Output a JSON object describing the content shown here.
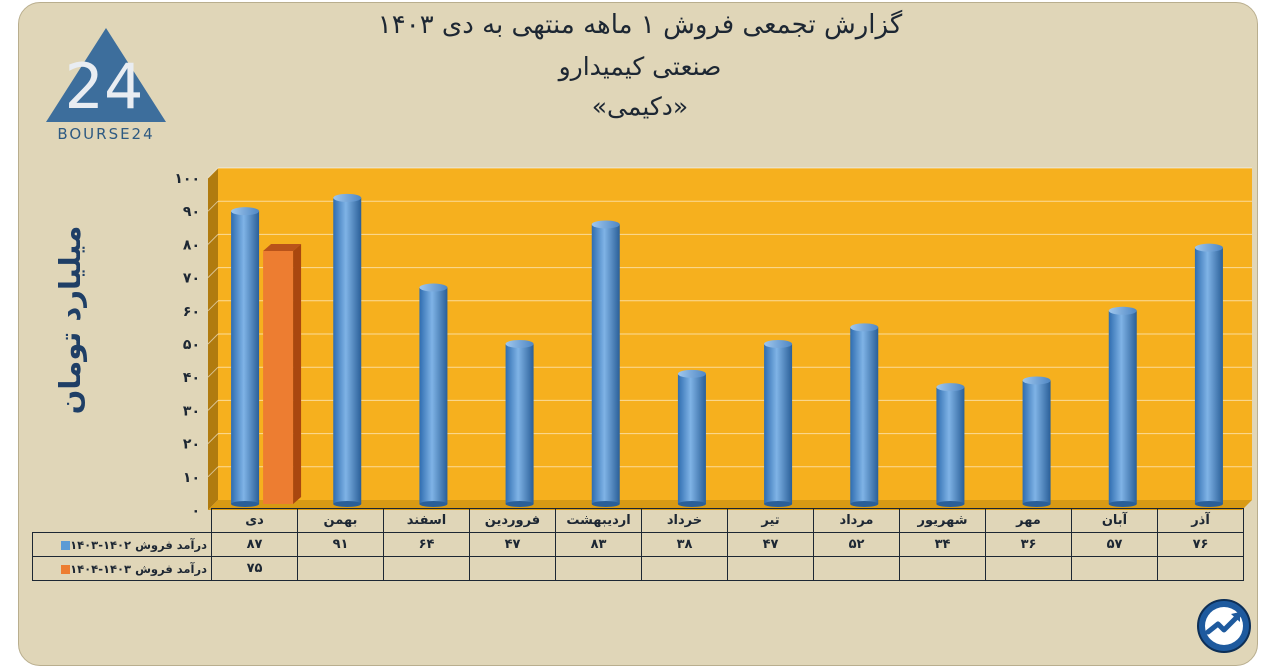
{
  "header": {
    "title_line1": "گزارش تجمعی فروش ۱ ماهه منتهی به دی ۱۴۰۳",
    "title_line2": "صنعتی کیمیدارو",
    "title_line3": "«دکیمی»"
  },
  "brand": {
    "logo_text": "BOURSE24",
    "logo_glyph": "24",
    "trend_icon": "trend-chart-icon"
  },
  "colors": {
    "background": "#e0d6b8",
    "plot": "#f6b01e",
    "series1": "#5b9bd5",
    "series2": "#ed7d31",
    "text": "#1d2733"
  },
  "chart_data": {
    "type": "bar",
    "ylabel": "میلیارد تومان",
    "ylim": [
      0,
      100
    ],
    "yticks": [
      "۰",
      "۱۰",
      "۲۰",
      "۳۰",
      "۴۰",
      "۵۰",
      "۶۰",
      "۷۰",
      "۸۰",
      "۹۰",
      "۱۰۰"
    ],
    "categories": [
      "دی",
      "بهمن",
      "اسفند",
      "فروردین",
      "اردیبهشت",
      "خرداد",
      "تیر",
      "مرداد",
      "شهریور",
      "مهر",
      "آبان",
      "آذر"
    ],
    "series": [
      {
        "name": "درآمد فروش ۱۴۰۲-۱۴۰۳",
        "values": [
          87,
          91,
          64,
          47,
          83,
          38,
          47,
          52,
          34,
          36,
          57,
          76
        ],
        "labels": [
          "۸۷",
          "۹۱",
          "۶۴",
          "۴۷",
          "۸۳",
          "۳۸",
          "۴۷",
          "۵۲",
          "۳۴",
          "۳۶",
          "۵۷",
          "۷۶"
        ]
      },
      {
        "name": "درآمد فروش ۱۴۰۳-۱۴۰۴",
        "values": [
          75,
          null,
          null,
          null,
          null,
          null,
          null,
          null,
          null,
          null,
          null,
          null
        ],
        "labels": [
          "۷۵",
          "",
          "",
          "",
          "",
          "",
          "",
          "",
          "",
          "",
          "",
          ""
        ]
      }
    ],
    "grid": true,
    "legend": "data-table"
  }
}
